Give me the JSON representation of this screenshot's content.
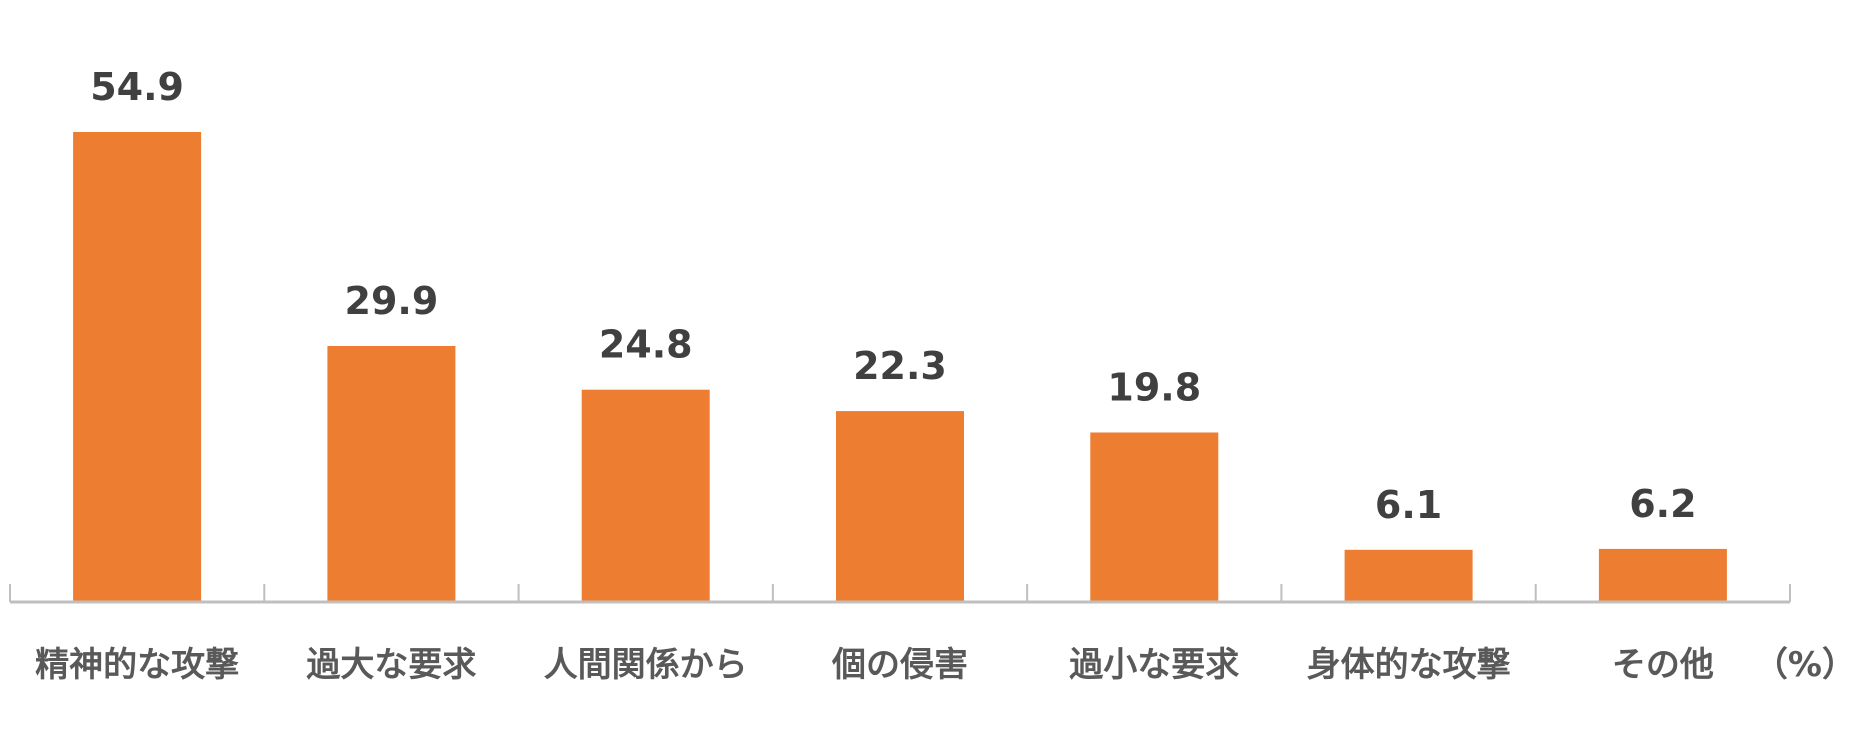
{
  "chart_data": {
    "type": "bar",
    "categories": [
      "精神的な攻撃",
      "過大な要求",
      "人間関係から",
      "個の侵害",
      "過小な要求",
      "身体的な攻撃",
      "その他"
    ],
    "values": [
      54.9,
      29.9,
      24.8,
      22.3,
      19.8,
      6.1,
      6.2
    ],
    "unit": "（%）",
    "ylim": [
      0,
      60
    ],
    "grid": false,
    "bar_color": "#ED7D31",
    "axis_color": "#BFBFBF",
    "label_color": "#404040",
    "category_color": "#595959"
  }
}
